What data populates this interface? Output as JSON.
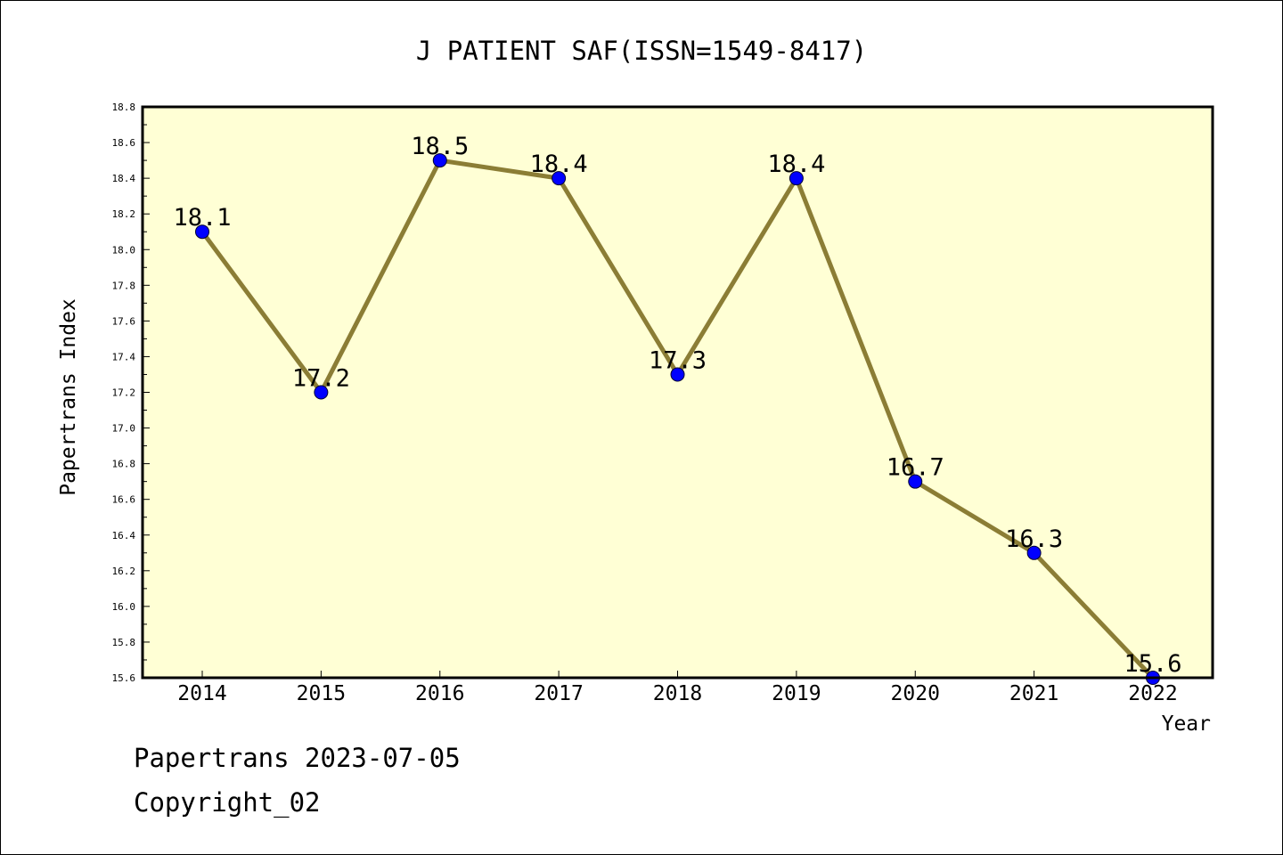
{
  "chart_data": {
    "type": "line",
    "title": "J PATIENT SAF(ISSN=1549-8417)",
    "xlabel": "Year",
    "ylabel": "Papertrans Index",
    "categories": [
      "2014",
      "2015",
      "2016",
      "2017",
      "2018",
      "2019",
      "2020",
      "2021",
      "2022"
    ],
    "series": [
      {
        "values": [
          18.1,
          17.2,
          18.5,
          18.4,
          17.3,
          18.4,
          16.7,
          16.3,
          15.6
        ]
      }
    ],
    "data_labels": [
      "18.1",
      "17.2",
      "18.5",
      "18.4",
      "17.3",
      "18.4",
      "16.7",
      "16.3",
      "15.6"
    ],
    "ylim": [
      15.6,
      18.8
    ],
    "yticks": [
      "15.6",
      "15.8",
      "16.0",
      "16.2",
      "16.4",
      "16.6",
      "16.8",
      "17.0",
      "17.2",
      "17.4",
      "17.6",
      "17.8",
      "18.0",
      "18.2",
      "18.4",
      "18.6",
      "18.8"
    ],
    "grid": false,
    "legend": "none",
    "colors": {
      "plot_background": "#ffffd5",
      "line": "#8b7d35",
      "marker": "#0000ff"
    }
  },
  "footer": {
    "date_line": "Papertrans 2023-07-05",
    "copyright": "Copyright_02"
  }
}
